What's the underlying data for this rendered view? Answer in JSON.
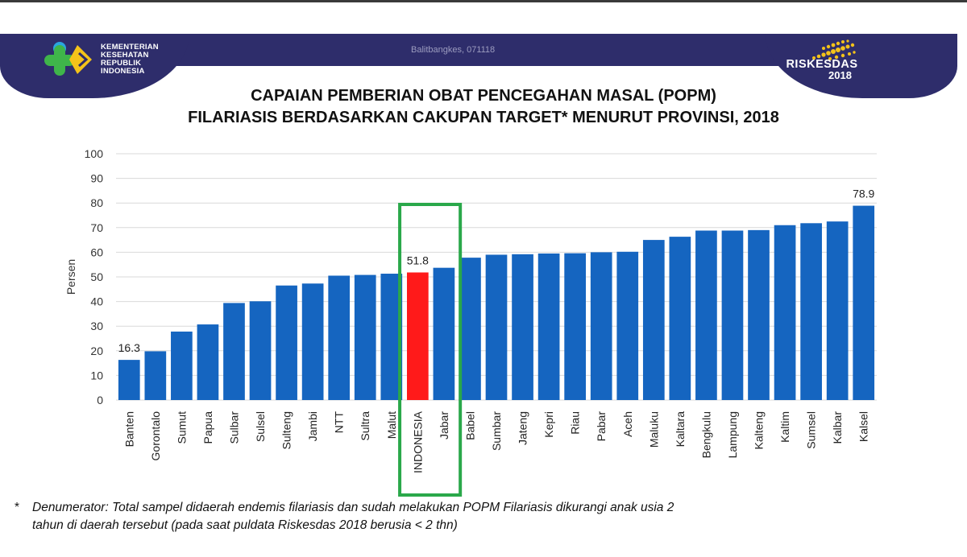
{
  "header": {
    "ministry_lines": [
      "KEMENTERIAN",
      "KESEHATAN",
      "REPUBLIK",
      "INDONESIA"
    ],
    "source_tag": "Balitbangkes, 071118",
    "brand_name": "RISKESDAS",
    "brand_year": "2018"
  },
  "colors": {
    "header_band": "#2e2d6b",
    "bar": "#1565c0",
    "highlight_bar": "#ff1a1a",
    "highlight_box": "#2aa84a",
    "logo_green": "#3fb54a",
    "logo_yellow": "#f4c31a",
    "logo_blue": "#2aa6df"
  },
  "chart_data": {
    "type": "bar",
    "title": "CAPAIAN PEMBERIAN OBAT PENCEGAHAN MASAL (POPM) FILARIASIS BERDASARKAN CAKUPAN TARGET* MENURUT PROVINSI, 2018",
    "title_lines": [
      "CAPAIAN PEMBERIAN OBAT PENCEGAHAN MASAL (POPM)",
      "FILARIASIS BERDASARKAN CAKUPAN TARGET* MENURUT PROVINSI, 2018"
    ],
    "xlabel": "",
    "ylabel": "Persen",
    "ylim": [
      0,
      100
    ],
    "yticks": [
      0,
      10,
      20,
      30,
      40,
      50,
      60,
      70,
      80,
      90,
      100
    ],
    "grid": true,
    "categories": [
      "Banten",
      "Gorontalo",
      "Sumut",
      "Papua",
      "Sulbar",
      "Sulsel",
      "Sulteng",
      "Jambi",
      "NTT",
      "Sultra",
      "Malut",
      "INDONESIA",
      "Jabar",
      "Babel",
      "Sumbar",
      "Jateng",
      "Kepri",
      "Riau",
      "Pabar",
      "Aceh",
      "Maluku",
      "Kaltara",
      "Bengkulu",
      "Lampung",
      "Kalteng",
      "Kaltim",
      "Sumsel",
      "Kalbar",
      "Kalsel"
    ],
    "values": [
      16.3,
      19.8,
      27.8,
      30.7,
      39.4,
      40.1,
      46.5,
      47.3,
      50.5,
      50.8,
      51.3,
      51.8,
      53.7,
      57.8,
      59.0,
      59.2,
      59.5,
      59.6,
      60.0,
      60.2,
      65.0,
      66.3,
      68.8,
      68.8,
      69.0,
      71.0,
      71.8,
      72.5,
      78.9
    ],
    "data_labels": [
      {
        "category": "Banten",
        "text": "16.3"
      },
      {
        "category": "INDONESIA",
        "text": "51.8"
      },
      {
        "category": "Kalsel",
        "text": "78.9"
      }
    ],
    "highlight": {
      "categories": [
        "INDONESIA",
        "Jabar"
      ],
      "red_bar": "INDONESIA"
    }
  },
  "footnote": {
    "star": "*",
    "line1": "Denumerator: Total sampel didaerah endemis filariasis dan sudah melakukan POPM Filariasis dikurangi anak usia 2",
    "line2": "tahun di daerah tersebut (pada saat puldata Riskesdas  2018 berusia < 2 thn)"
  }
}
